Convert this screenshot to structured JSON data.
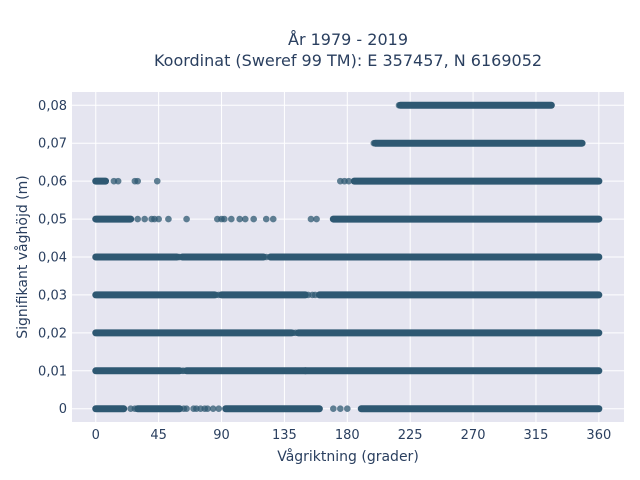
{
  "chart_data": {
    "type": "scatter",
    "title": [
      "År 1979 - 2019",
      "Koordinat (Sweref 99 TM): E 357457, N 6169052"
    ],
    "xlabel": "Vågriktning (grader)",
    "ylabel": "Signifikant våghöjd (m)",
    "xlim": [
      -17,
      378
    ],
    "ylim": [
      -0.0035,
      0.0835
    ],
    "x_ticks": [
      0,
      45,
      90,
      135,
      180,
      225,
      270,
      315,
      360
    ],
    "x_tick_labels": [
      "0",
      "45",
      "90",
      "135",
      "180",
      "225",
      "270",
      "315",
      "360"
    ],
    "y_ticks": [
      0,
      0.01,
      0.02,
      0.03,
      0.04,
      0.05,
      0.06,
      0.07,
      0.08
    ],
    "y_tick_labels": [
      "0",
      "0,01",
      "0,02",
      "0,03",
      "0,04",
      "0,05",
      "0,06",
      "0,07",
      "0,08"
    ],
    "grid": true,
    "marker_color": "#2e5872",
    "plot_background": "#e5e5f0",
    "bands": [
      {
        "y": 0.0,
        "dense": [
          [
            0,
            20
          ],
          [
            30,
            60
          ],
          [
            93,
            160
          ],
          [
            190,
            360
          ]
        ],
        "points": [
          25,
          28,
          63,
          65,
          70,
          72,
          75,
          78,
          80,
          84,
          88,
          170,
          175,
          180
        ]
      },
      {
        "y": 0.01,
        "dense": [
          [
            0,
            60
          ],
          [
            65,
            150
          ],
          [
            150,
            360
          ]
        ],
        "points": [
          62,
          63
        ]
      },
      {
        "y": 0.02,
        "dense": [
          [
            0,
            140
          ],
          [
            145,
            360
          ]
        ],
        "points": [
          141,
          143
        ]
      },
      {
        "y": 0.03,
        "dense": [
          [
            0,
            85
          ],
          [
            90,
            150
          ],
          [
            160,
            360
          ]
        ],
        "points": [
          86,
          88,
          152,
          155,
          157
        ]
      },
      {
        "y": 0.04,
        "dense": [
          [
            0,
            58
          ],
          [
            62,
            120
          ],
          [
            125,
            360
          ]
        ],
        "points": [
          59,
          60,
          122
        ]
      },
      {
        "y": 0.05,
        "dense": [
          [
            0,
            25
          ],
          [
            170,
            360
          ]
        ],
        "points": [
          30,
          35,
          40,
          42,
          45,
          52,
          65,
          87,
          90,
          92,
          97,
          103,
          107,
          113,
          122,
          127,
          154,
          158
        ]
      },
      {
        "y": 0.06,
        "dense": [
          [
            0,
            7
          ],
          [
            185,
            360
          ]
        ],
        "points": [
          13,
          16,
          28,
          30,
          44,
          175,
          178,
          181
        ]
      },
      {
        "y": 0.07,
        "dense": [
          [
            200,
            348
          ]
        ],
        "points": [
          199
        ]
      },
      {
        "y": 0.08,
        "dense": [
          [
            218,
            326
          ]
        ],
        "points": [
          217
        ]
      }
    ]
  }
}
